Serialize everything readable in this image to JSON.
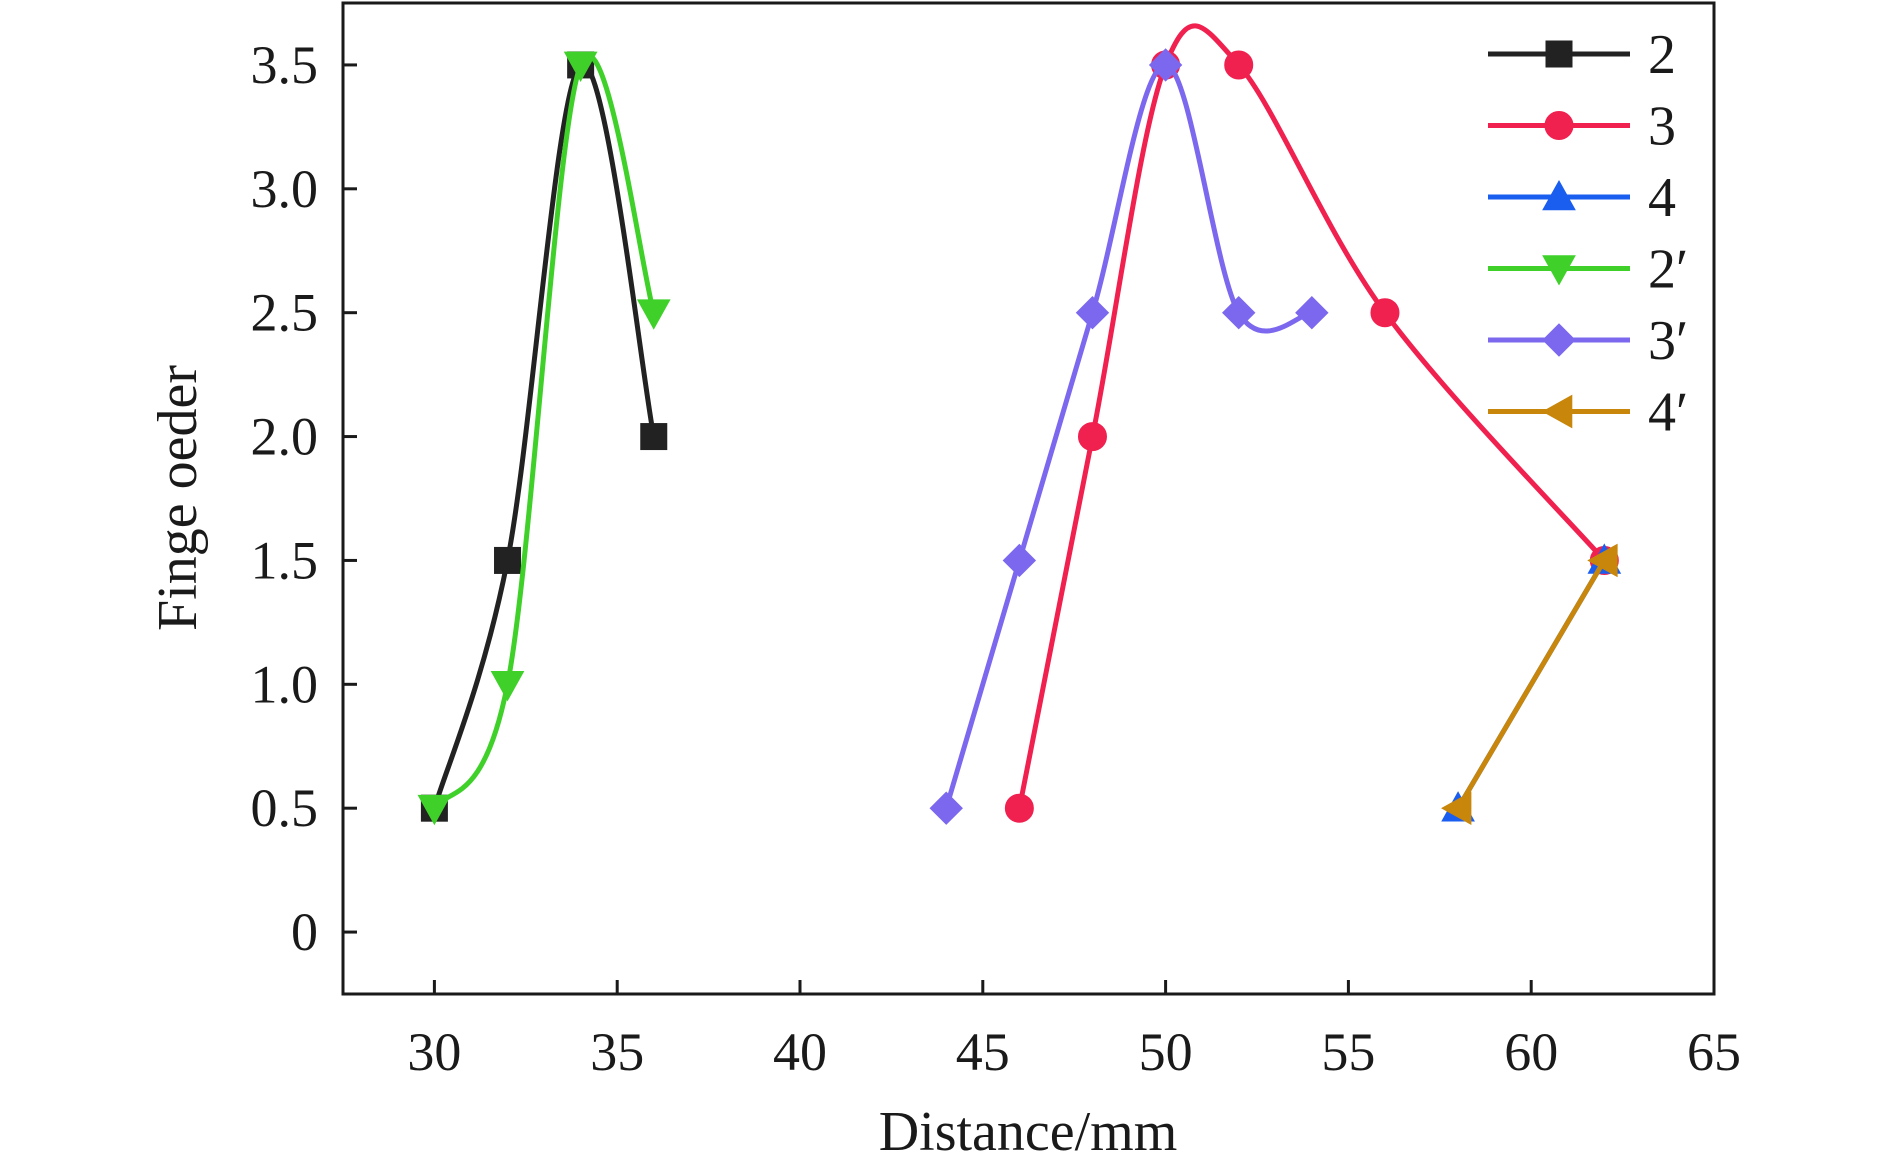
{
  "chart_data": {
    "type": "line",
    "xlabel": "Distance/mm",
    "ylabel": "Finge oeder",
    "xlim": [
      27.5,
      65
    ],
    "ylim": [
      -0.25,
      3.75
    ],
    "xticks": [
      30,
      35,
      40,
      45,
      50,
      55,
      60,
      65
    ],
    "yticks": [
      0,
      0.5,
      1.0,
      1.5,
      2.0,
      2.5,
      3.0,
      3.5
    ],
    "xtick_labels": [
      "30",
      "35",
      "40",
      "45",
      "50",
      "55",
      "60",
      "65"
    ],
    "ytick_labels": [
      "0",
      "0.5",
      "1.0",
      "1.5",
      "2.0",
      "2.5",
      "3.0",
      "3.5"
    ],
    "grid": false,
    "legend_position": "top-right",
    "series": [
      {
        "name": "2",
        "color": "#222222",
        "marker": "square",
        "x": [
          30,
          32,
          34,
          36
        ],
        "y": [
          0.5,
          1.5,
          3.5,
          2.0
        ]
      },
      {
        "name": "3",
        "color": "#f0204f",
        "marker": "circle",
        "x": [
          46,
          48,
          50,
          52,
          56,
          62
        ],
        "y": [
          0.5,
          2.0,
          3.5,
          3.5,
          2.5,
          1.5
        ]
      },
      {
        "name": "4",
        "color": "#1a5ef0",
        "marker": "triangle-up",
        "x": [
          58,
          62
        ],
        "y": [
          0.5,
          1.5
        ]
      },
      {
        "name": "2′",
        "color": "#3fd12a",
        "marker": "triangle-down",
        "x": [
          30,
          32,
          34,
          36
        ],
        "y": [
          0.5,
          1.0,
          3.5,
          2.5
        ]
      },
      {
        "name": "3′",
        "color": "#7b68ee",
        "marker": "diamond",
        "x": [
          44,
          46,
          48,
          50,
          52,
          54
        ],
        "y": [
          0.5,
          1.5,
          2.5,
          3.5,
          2.5,
          2.5
        ]
      },
      {
        "name": "4′",
        "color": "#c8860a",
        "marker": "triangle-left",
        "x": [
          58,
          62
        ],
        "y": [
          0.5,
          1.5
        ]
      }
    ]
  }
}
